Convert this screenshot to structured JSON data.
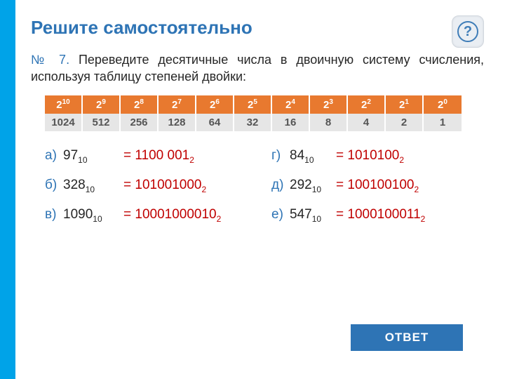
{
  "colors": {
    "sidebar": "#00a3e8",
    "title": "#2e74b5",
    "text": "#262626",
    "accent": "#c00000",
    "table_header_bg": "#e8792f",
    "table_data_bg": "#e6e6e6",
    "answer_btn_bg": "#2e74b5",
    "help_border": "#3f7db8"
  },
  "title": "Решите самостоятельно",
  "task": {
    "number": "№ 7.",
    "text": " Переведите десятичные числа в двоичную систему счисления, используя таблицу степеней двойки:"
  },
  "powers_table": {
    "headers_base": "2",
    "headers_exp": [
      "10",
      "9",
      "8",
      "7",
      "6",
      "5",
      "4",
      "3",
      "2",
      "1",
      "0"
    ],
    "values": [
      "1024",
      "512",
      "256",
      "128",
      "64",
      "32",
      "16",
      "8",
      "4",
      "2",
      "1"
    ]
  },
  "problems": [
    {
      "label": "а)",
      "num": "97",
      "sub": "10",
      "ans": "= 1100 001",
      "ans_sub": "2"
    },
    {
      "label": "б)",
      "num": "328",
      "sub": "10",
      "ans": "= 101001000",
      "ans_sub": "2"
    },
    {
      "label": "в)",
      "num": "1090",
      "sub": "10",
      "ans": "= 10001000010",
      "ans_sub": "2"
    },
    {
      "label": "г)",
      "num": "84",
      "sub": "10",
      "ans": "= 1010100",
      "ans_sub": "2"
    },
    {
      "label": "д)",
      "num": "292",
      "sub": "10",
      "ans": "= 100100100",
      "ans_sub": "2"
    },
    {
      "label": "е)",
      "num": "547",
      "sub": "10",
      "ans": "= 1000100011",
      "ans_sub": "2"
    }
  ],
  "answer_button": "ОТВЕТ",
  "help_icon": "?"
}
